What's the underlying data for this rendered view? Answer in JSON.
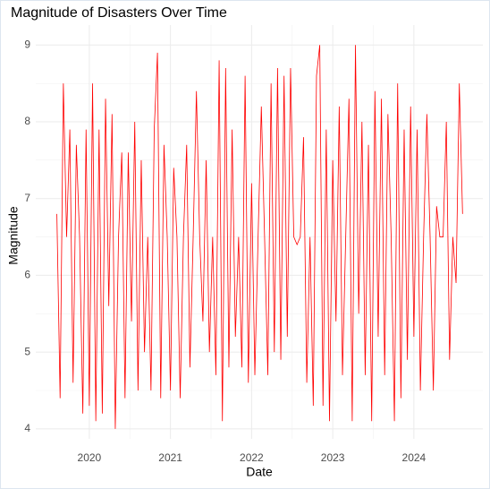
{
  "chart_data": {
    "type": "line",
    "title": "Magnitude of Disasters Over Time",
    "x_label": "Date",
    "y_label": "Magnitude",
    "x": [
      2019.6,
      2019.64,
      2019.68,
      2019.72,
      2019.76,
      2019.8,
      2019.84,
      2019.88,
      2019.92,
      2019.96,
      2020.0,
      2020.04,
      2020.08,
      2020.12,
      2020.16,
      2020.2,
      2020.24,
      2020.28,
      2020.32,
      2020.36,
      2020.4,
      2020.44,
      2020.48,
      2020.52,
      2020.56,
      2020.6,
      2020.64,
      2020.68,
      2020.72,
      2020.76,
      2020.8,
      2020.84,
      2020.88,
      2020.92,
      2020.96,
      2021.0,
      2021.04,
      2021.08,
      2021.12,
      2021.16,
      2021.2,
      2021.24,
      2021.28,
      2021.32,
      2021.36,
      2021.4,
      2021.44,
      2021.48,
      2021.52,
      2021.56,
      2021.6,
      2021.64,
      2021.68,
      2021.72,
      2021.76,
      2021.8,
      2021.84,
      2021.88,
      2021.92,
      2021.96,
      2022.0,
      2022.04,
      2022.08,
      2022.12,
      2022.16,
      2022.2,
      2022.24,
      2022.28,
      2022.32,
      2022.36,
      2022.4,
      2022.44,
      2022.48,
      2022.52,
      2022.56,
      2022.6,
      2022.64,
      2022.68,
      2022.72,
      2022.76,
      2022.8,
      2022.84,
      2022.88,
      2022.92,
      2022.96,
      2023.0,
      2023.04,
      2023.08,
      2023.12,
      2023.16,
      2023.2,
      2023.24,
      2023.28,
      2023.32,
      2023.36,
      2023.4,
      2023.44,
      2023.48,
      2023.52,
      2023.56,
      2023.6,
      2023.64,
      2023.68,
      2023.72,
      2023.76,
      2023.8,
      2023.84,
      2023.88,
      2023.92,
      2023.96,
      2024.0,
      2024.04,
      2024.08,
      2024.12,
      2024.16,
      2024.2,
      2024.24,
      2024.28,
      2024.32,
      2024.36,
      2024.4,
      2024.44,
      2024.48,
      2024.52,
      2024.56,
      2024.6
    ],
    "series": [
      {
        "name": "Magnitude",
        "color": "#ff0000",
        "values": [
          6.8,
          4.4,
          8.5,
          6.5,
          7.9,
          4.6,
          7.7,
          6.5,
          4.2,
          7.9,
          4.3,
          8.5,
          4.1,
          7.9,
          4.2,
          8.3,
          5.6,
          8.1,
          4.0,
          6.5,
          7.6,
          4.4,
          7.6,
          5.4,
          8.0,
          4.5,
          7.5,
          5.0,
          6.5,
          4.5,
          7.9,
          8.9,
          4.4,
          7.7,
          6.5,
          4.5,
          7.4,
          6.5,
          4.4,
          6.5,
          7.7,
          4.8,
          6.5,
          8.4,
          6.5,
          5.4,
          7.5,
          5.0,
          6.5,
          4.7,
          8.8,
          4.1,
          8.7,
          4.8,
          7.9,
          5.2,
          6.5,
          4.8,
          8.6,
          4.6,
          7.2,
          4.7,
          6.5,
          8.2,
          6.5,
          4.7,
          8.5,
          5.0,
          8.7,
          4.9,
          8.6,
          5.2,
          8.7,
          6.5,
          6.4,
          6.5,
          7.8,
          4.6,
          6.5,
          4.3,
          8.6,
          9.0,
          4.3,
          7.9,
          4.1,
          7.5,
          5.4,
          8.2,
          4.7,
          6.5,
          8.3,
          4.1,
          9.0,
          5.5,
          8.0,
          4.7,
          7.7,
          4.1,
          8.4,
          5.2,
          8.3,
          4.7,
          8.1,
          6.5,
          4.1,
          8.5,
          4.4,
          7.9,
          4.9,
          8.2,
          5.2,
          7.9,
          4.5,
          6.5,
          8.1,
          6.5,
          4.5,
          6.9,
          6.5,
          6.5,
          8.0,
          4.9,
          6.5,
          5.9,
          8.5,
          6.8
        ]
      }
    ],
    "xlim": [
      2019.34,
      2024.85
    ],
    "xticks": [
      2020,
      2021,
      2022,
      2023,
      2024
    ],
    "ylim": [
      3.87,
      9.26
    ],
    "yticks": [
      4,
      5,
      6,
      7,
      8,
      9
    ],
    "grid": true
  }
}
